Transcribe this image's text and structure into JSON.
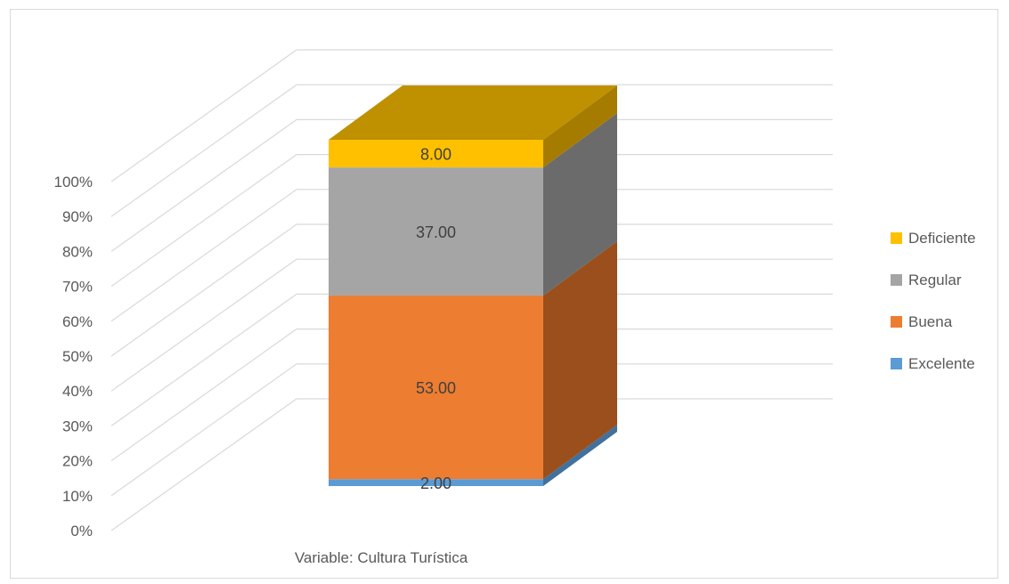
{
  "chart_data": {
    "type": "bar",
    "stacked": "percent",
    "three_d": true,
    "categories": [
      "Variable: Cultura Turística"
    ],
    "series": [
      {
        "name": "Excelente",
        "values": [
          2.0
        ],
        "label": "2.00",
        "color": "#5B9BD5",
        "side_color": "#41719C",
        "top_color": "#4A86BC"
      },
      {
        "name": "Buena",
        "values": [
          53.0
        ],
        "label": "53.00",
        "color": "#ED7D31",
        "side_color": "#9A4F1D",
        "top_color": "#C0651F"
      },
      {
        "name": "Regular",
        "values": [
          37.0
        ],
        "label": "37.00",
        "color": "#A5A5A5",
        "side_color": "#6B6B6B",
        "top_color": "#888888"
      },
      {
        "name": "Deficiente",
        "values": [
          8.0
        ],
        "label": "8.00",
        "color": "#FFC000",
        "side_color": "#A67C00",
        "top_color": "#BF9000"
      }
    ],
    "y_ticks": [
      "0%",
      "10%",
      "20%",
      "30%",
      "40%",
      "50%",
      "60%",
      "70%",
      "80%",
      "90%",
      "100%"
    ],
    "ylim": [
      0,
      100
    ],
    "legend_position": "right",
    "grid": true,
    "title": "",
    "xlabel": "",
    "ylabel": ""
  }
}
